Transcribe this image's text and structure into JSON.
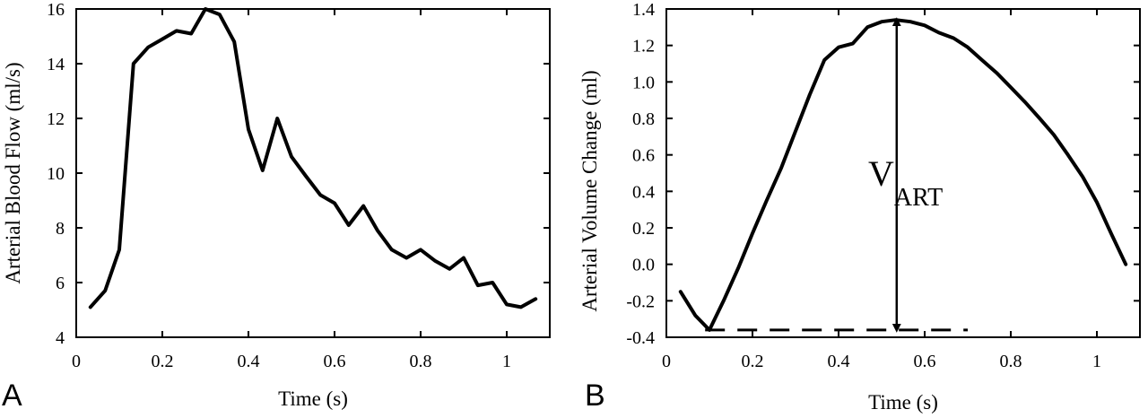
{
  "chart_data": [
    {
      "type": "line",
      "panel_label": "A",
      "xlabel": "Time (s)",
      "ylabel": "Arterial Blood Flow (ml/s)",
      "xlim": [
        0,
        1.1
      ],
      "ylim": [
        4,
        16
      ],
      "xticks": [
        0,
        0.2,
        0.4,
        0.6,
        0.8,
        1
      ],
      "xtick_labels": [
        "0",
        "0.2",
        "0.4",
        "0.6",
        "0.8",
        "1"
      ],
      "yticks": [
        4,
        6,
        8,
        10,
        12,
        14,
        16
      ],
      "ytick_labels": [
        "4",
        "6",
        "8",
        "10",
        "12",
        "14",
        "16"
      ],
      "grid": false,
      "series": [
        {
          "x": [
            0.033,
            0.067,
            0.1,
            0.133,
            0.167,
            0.2,
            0.233,
            0.267,
            0.3,
            0.333,
            0.367,
            0.4,
            0.433,
            0.467,
            0.5,
            0.533,
            0.567,
            0.6,
            0.633,
            0.667,
            0.7,
            0.733,
            0.767,
            0.8,
            0.833,
            0.867,
            0.9,
            0.933,
            0.967,
            1.0,
            1.033,
            1.067
          ],
          "y": [
            5.1,
            5.7,
            7.2,
            14.0,
            14.6,
            14.9,
            15.2,
            15.1,
            16.0,
            15.8,
            14.8,
            11.6,
            10.1,
            12.0,
            10.6,
            9.9,
            9.2,
            8.9,
            8.1,
            8.8,
            7.9,
            7.2,
            6.9,
            7.2,
            6.8,
            6.5,
            6.9,
            5.9,
            6.0,
            5.2,
            5.1,
            5.4
          ]
        }
      ]
    },
    {
      "type": "line",
      "panel_label": "B",
      "xlabel": "Time (s)",
      "ylabel": "Arterial Volume Change (ml)",
      "xlim": [
        0,
        1.1
      ],
      "ylim": [
        -0.4,
        1.4
      ],
      "xticks": [
        0,
        0.2,
        0.4,
        0.6,
        0.8,
        1
      ],
      "xtick_labels": [
        "0",
        "0.2",
        "0.4",
        "0.6",
        "0.8",
        "1"
      ],
      "yticks": [
        -0.4,
        -0.2,
        0.0,
        0.2,
        0.4,
        0.6,
        0.8,
        1.0,
        1.2,
        1.4
      ],
      "ytick_labels": [
        "-0.4",
        "-0.2",
        "0.0",
        "0.2",
        "0.4",
        "0.6",
        "0.8",
        "1.0",
        "1.2",
        "1.4"
      ],
      "grid": false,
      "series": [
        {
          "x": [
            0.033,
            0.067,
            0.1,
            0.133,
            0.167,
            0.2,
            0.233,
            0.267,
            0.3,
            0.333,
            0.367,
            0.4,
            0.433,
            0.467,
            0.5,
            0.533,
            0.567,
            0.6,
            0.633,
            0.667,
            0.7,
            0.733,
            0.767,
            0.8,
            0.833,
            0.867,
            0.9,
            0.933,
            0.967,
            1.0,
            1.033,
            1.067
          ],
          "y": [
            -0.15,
            -0.28,
            -0.36,
            -0.2,
            -0.02,
            0.17,
            0.35,
            0.53,
            0.73,
            0.93,
            1.12,
            1.19,
            1.21,
            1.3,
            1.33,
            1.34,
            1.33,
            1.31,
            1.27,
            1.24,
            1.19,
            1.12,
            1.05,
            0.97,
            0.89,
            0.8,
            0.71,
            0.6,
            0.48,
            0.34,
            0.17,
            0.0
          ]
        }
      ],
      "annotations": {
        "baseline": {
          "y": -0.36,
          "x_range": [
            0.09,
            0.7
          ],
          "style": "dashed"
        },
        "arrow": {
          "x": 0.535,
          "y_range": [
            -0.36,
            1.34
          ]
        },
        "label_main": "V",
        "label_sub": "ART"
      }
    }
  ]
}
